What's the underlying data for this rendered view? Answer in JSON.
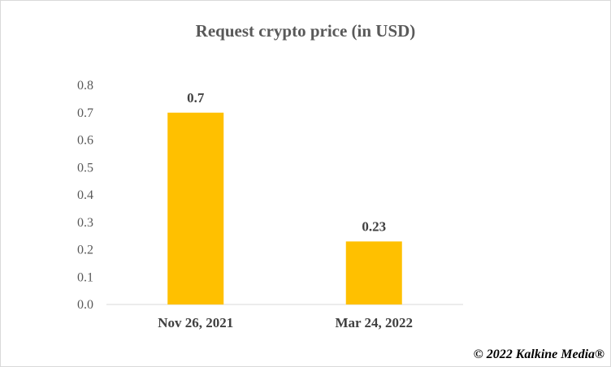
{
  "chart_data": {
    "type": "bar",
    "title": "Request crypto price (in USD)",
    "categories": [
      "Nov 26, 2021",
      "Mar 24, 2022"
    ],
    "values": [
      0.7,
      0.23
    ],
    "data_labels": [
      "0.7",
      "0.23"
    ],
    "xlabel": "",
    "ylabel": "",
    "ylim": [
      0,
      0.8
    ],
    "yticks": [
      "0.0",
      "0.1",
      "0.2",
      "0.3",
      "0.4",
      "0.5",
      "0.6",
      "0.7",
      "0.8"
    ],
    "grid": false,
    "legend": "none",
    "bar_color": "#FFC000"
  },
  "footer": {
    "copyright": "© 2022 Kalkine Media®"
  }
}
